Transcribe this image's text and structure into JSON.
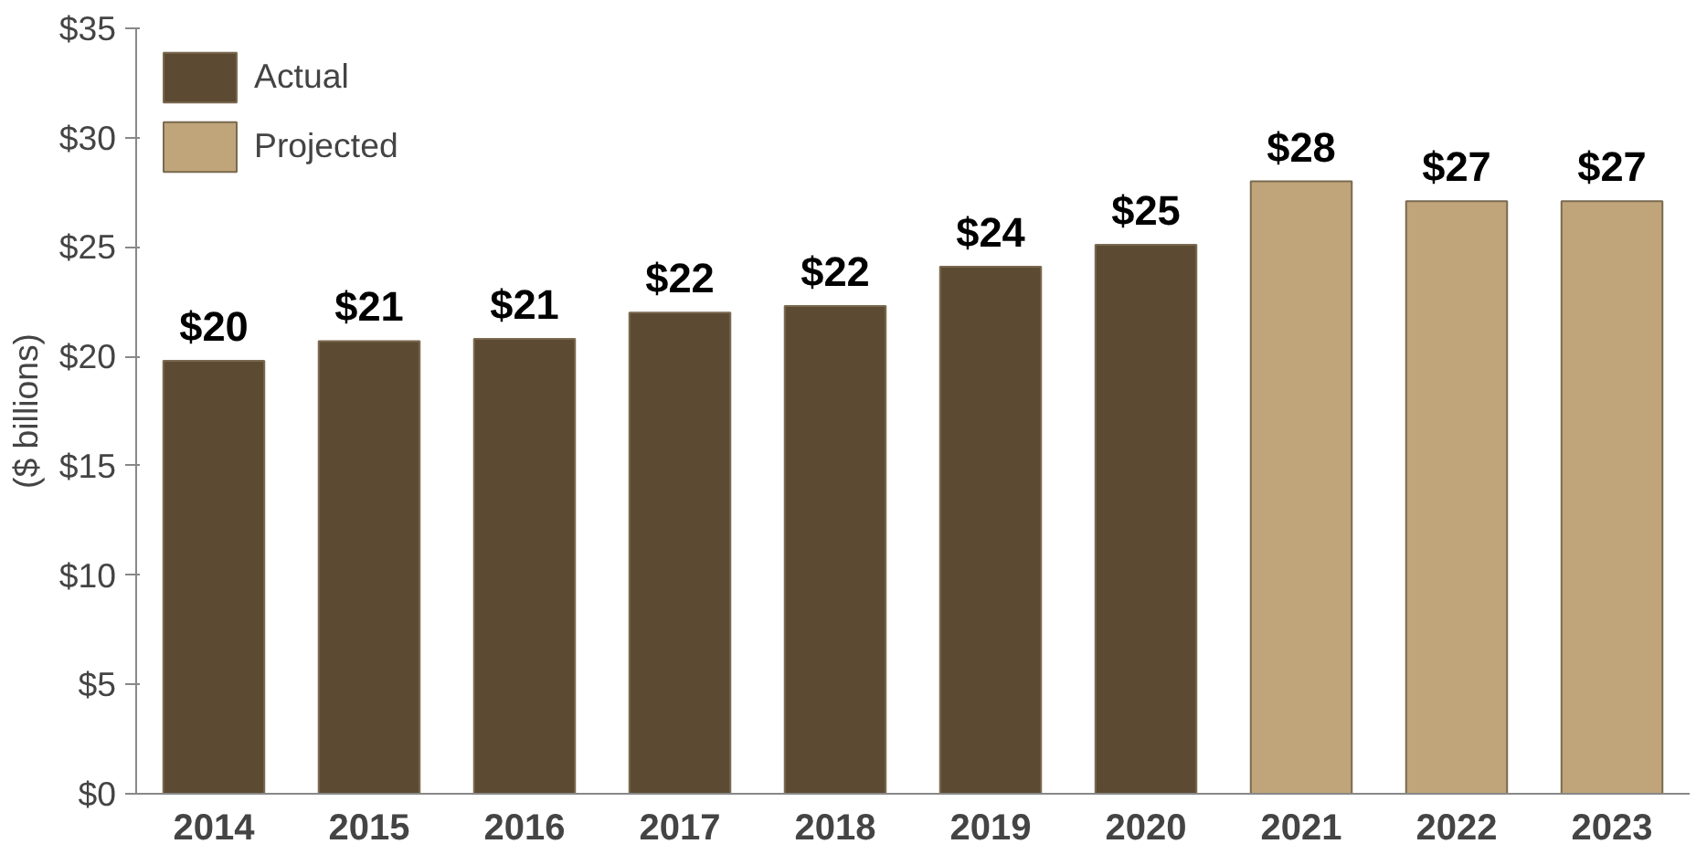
{
  "chart_data": {
    "type": "bar",
    "ylabel": "($ billions)",
    "categories": [
      "2014",
      "2015",
      "2016",
      "2017",
      "2018",
      "2019",
      "2020",
      "2021",
      "2022",
      "2023"
    ],
    "series": [
      {
        "name": "Actual",
        "color": "#5c4a32",
        "values": [
          19.8,
          20.7,
          20.8,
          22.0,
          22.3,
          24.1,
          25.1,
          null,
          null,
          null
        ],
        "value_labels": [
          "$20",
          "$21",
          "$21",
          "$22",
          "$22",
          "$24",
          "$25",
          null,
          null,
          null
        ]
      },
      {
        "name": "Projected",
        "color": "#c0a47a",
        "values": [
          null,
          null,
          null,
          null,
          null,
          null,
          null,
          28.0,
          27.1,
          27.1
        ],
        "value_labels": [
          null,
          null,
          null,
          null,
          null,
          null,
          null,
          "$28",
          "$27",
          "$27"
        ]
      }
    ],
    "ylim": [
      0,
      35
    ],
    "yticks": [
      {
        "value": 0,
        "label": "$0"
      },
      {
        "value": 5,
        "label": "$5"
      },
      {
        "value": 10,
        "label": "$10"
      },
      {
        "value": 15,
        "label": "$15"
      },
      {
        "value": 20,
        "label": "$20"
      },
      {
        "value": 25,
        "label": "$25"
      },
      {
        "value": 30,
        "label": "$30"
      },
      {
        "value": 35,
        "label": "$35"
      }
    ],
    "grid": false,
    "legend": "top left"
  }
}
